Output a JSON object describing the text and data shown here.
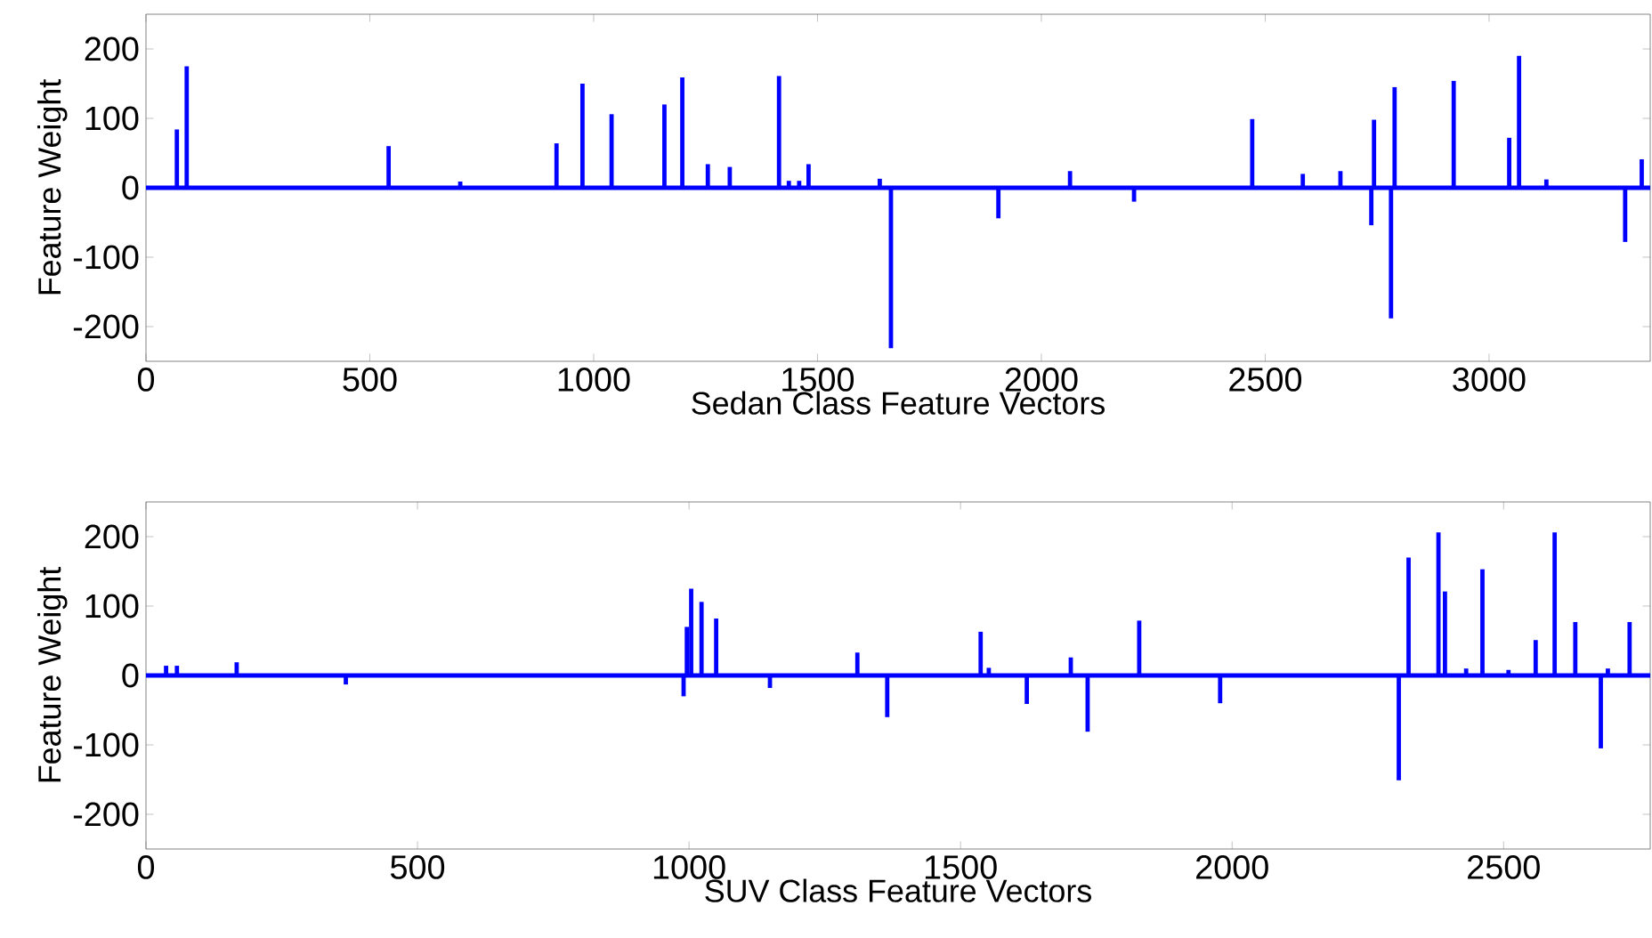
{
  "chart_data": [
    {
      "type": "bar",
      "xlabel": "Sedan Class Feature Vectors",
      "ylabel": "Feature Weight",
      "color": "#0000ff",
      "x": [
        69,
        91,
        542,
        702,
        917,
        975,
        1040,
        1158,
        1198,
        1255,
        1304,
        1414,
        1436,
        1459,
        1480,
        1639,
        1664,
        1904,
        2064,
        2207,
        2471,
        2584,
        2668,
        2737,
        2743,
        2781,
        2789,
        2921,
        3045,
        3067,
        3128,
        3304,
        3341
      ],
      "values": [
        84,
        175,
        60,
        9,
        64,
        150,
        106,
        120,
        159,
        34,
        30,
        161,
        10,
        10,
        34,
        13,
        -231,
        -44,
        24,
        -20,
        99,
        20,
        24,
        -54,
        98,
        -188,
        145,
        154,
        72,
        190,
        12,
        -78,
        41
      ],
      "xlim": [
        0,
        3360
      ],
      "xticks": [
        0,
        500,
        1000,
        1500,
        2000,
        2500,
        3000
      ],
      "ylim": [
        -250,
        250
      ],
      "yticks": [
        -200,
        -100,
        0,
        100,
        200
      ],
      "ref_lines": [
        {
          "axis": "y",
          "value": 0,
          "color": "#0000ff"
        }
      ]
    },
    {
      "type": "bar",
      "xlabel": "SUV Class Feature Vectors",
      "ylabel": "Feature Weight",
      "color": "#0000ff",
      "x": [
        37,
        57,
        167,
        368,
        580,
        990,
        996,
        1004,
        1023,
        1050,
        1149,
        1310,
        1365,
        1537,
        1552,
        1622,
        1703,
        1734,
        1829,
        1978,
        2307,
        2325,
        2380,
        2392,
        2431,
        2461,
        2509,
        2559,
        2594,
        2632,
        2679,
        2692,
        2732
      ],
      "values": [
        14,
        14,
        19,
        -13,
        null,
        -30,
        70,
        125,
        106,
        82,
        -18,
        33,
        -60,
        63,
        11,
        -41,
        26,
        -81,
        79,
        -40,
        -151,
        170,
        206,
        121,
        10,
        153,
        8,
        51,
        206,
        77,
        -105,
        10,
        77
      ],
      "xlim": [
        0,
        2770
      ],
      "xticks": [
        0,
        500,
        1000,
        1500,
        2000,
        2500
      ],
      "ylim": [
        -250,
        250
      ],
      "yticks": [
        -200,
        -100,
        0,
        100,
        200
      ],
      "ref_lines": [
        {
          "axis": "y",
          "value": 0,
          "color": "#0000ff"
        }
      ]
    }
  ]
}
